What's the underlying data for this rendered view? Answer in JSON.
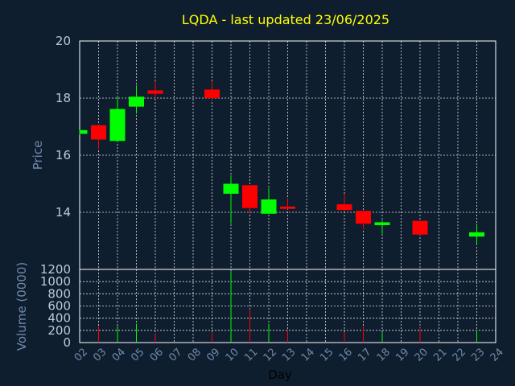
{
  "chart_data": {
    "type": "candlestick",
    "title": "LQDA - last updated 23/06/2025",
    "xlabel": "Day",
    "x_ticks": [
      "02",
      "03",
      "04",
      "05",
      "06",
      "07",
      "08",
      "09",
      "10",
      "11",
      "12",
      "13",
      "14",
      "15",
      "16",
      "17",
      "18",
      "19",
      "20",
      "21",
      "22",
      "23",
      "24"
    ],
    "price_panel": {
      "ylabel": "Price",
      "ylim": [
        12.0,
        20.0
      ],
      "y_ticks": [
        14,
        16,
        18,
        20
      ],
      "grid": true
    },
    "volume_panel": {
      "ylabel": "Volume (0000)",
      "ylim": [
        0,
        1200
      ],
      "y_ticks": [
        0,
        200,
        400,
        600,
        800,
        1000,
        1200
      ],
      "grid": true
    },
    "candles": [
      {
        "day": 2,
        "open": 16.75,
        "high": 16.88,
        "low": 16.72,
        "close": 16.88,
        "volume": 0
      },
      {
        "day": 3,
        "open": 17.05,
        "high": 17.08,
        "low": 16.22,
        "close": 16.55,
        "volume": 280
      },
      {
        "day": 4,
        "open": 16.5,
        "high": 18.05,
        "low": 16.45,
        "close": 17.62,
        "volume": 270
      },
      {
        "day": 5,
        "open": 17.7,
        "high": 18.45,
        "low": 17.45,
        "close": 18.05,
        "volume": 310
      },
      {
        "day": 6,
        "open": 18.27,
        "high": 18.6,
        "low": 18.0,
        "close": 18.15,
        "volume": 140
      },
      {
        "day": 9,
        "open": 18.3,
        "high": 18.6,
        "low": 17.9,
        "close": 18.0,
        "volume": 160
      },
      {
        "day": 10,
        "open": 14.65,
        "high": 15.3,
        "low": 13.6,
        "close": 15.0,
        "volume": 1170
      },
      {
        "day": 11,
        "open": 14.95,
        "high": 14.95,
        "low": 13.95,
        "close": 14.15,
        "volume": 550
      },
      {
        "day": 12,
        "open": 13.95,
        "high": 14.85,
        "low": 13.95,
        "close": 14.45,
        "volume": 310
      },
      {
        "day": 13,
        "open": 14.2,
        "high": 14.5,
        "low": 14.1,
        "close": 14.12,
        "volume": 210
      },
      {
        "day": 16,
        "open": 14.28,
        "high": 14.65,
        "low": 14.05,
        "close": 14.08,
        "volume": 170
      },
      {
        "day": 17,
        "open": 14.05,
        "high": 14.05,
        "low": 13.4,
        "close": 13.6,
        "volume": 270
      },
      {
        "day": 18,
        "open": 13.55,
        "high": 13.72,
        "low": 13.25,
        "close": 13.65,
        "volume": 170
      },
      {
        "day": 20,
        "open": 13.7,
        "high": 13.7,
        "low": 13.2,
        "close": 13.22,
        "volume": 240
      },
      {
        "day": 23,
        "open": 13.15,
        "high": 13.6,
        "low": 12.85,
        "close": 13.3,
        "volume": 200
      }
    ],
    "colors": {
      "background": "#0f1e2f",
      "up": "#00ff00",
      "down": "#ff0000",
      "grid": "#ffffff",
      "title": "#ffff00",
      "axis_text": "#6e8aa8"
    }
  }
}
